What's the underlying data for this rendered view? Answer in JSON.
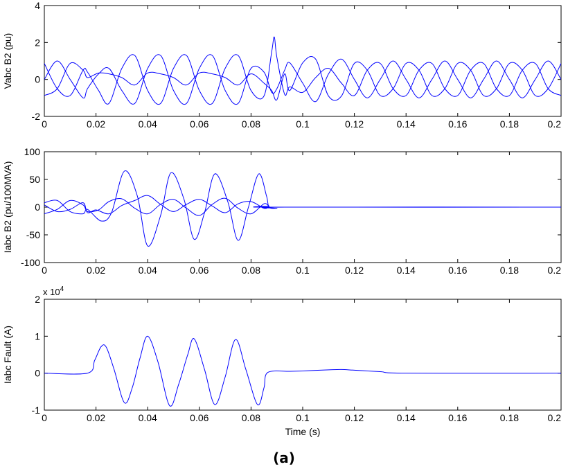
{
  "figure_label": "(a)",
  "chart_data": [
    {
      "type": "line",
      "ylabel": "Vabc B2 (pu)",
      "xlabel": "",
      "xlim": [
        0,
        0.2
      ],
      "ylim": [
        -2,
        4
      ],
      "xticks": [
        0,
        0.02,
        0.04,
        0.06,
        0.08,
        0.1,
        0.12,
        0.14,
        0.16,
        0.18,
        0.2
      ],
      "xtick_labels": [
        "0",
        "0.02",
        "0.04",
        "0.06",
        "0.08",
        "0.1",
        "0.12",
        "0.14",
        "0.16",
        "0.18",
        "0.2"
      ],
      "yticks": [
        -2,
        0,
        2,
        4
      ],
      "ytick_labels": [
        "-2",
        "0",
        "2",
        "4"
      ],
      "line_color": "#0000ff",
      "series": [
        {
          "phase_deg": 0,
          "points": [
            [
              0,
              0.0
            ],
            [
              0.005,
              1.0
            ],
            [
              0.01,
              0.0
            ],
            [
              0.015,
              -1.0
            ],
            [
              0.0167,
              -0.5
            ],
            [
              0.021,
              0.3
            ],
            [
              0.025,
              0.6
            ],
            [
              0.03,
              -0.6
            ],
            [
              0.035,
              -1.3
            ],
            [
              0.04,
              0.6
            ],
            [
              0.045,
              1.3
            ],
            [
              0.05,
              -0.6
            ],
            [
              0.055,
              -1.3
            ],
            [
              0.06,
              0.6
            ],
            [
              0.065,
              1.3
            ],
            [
              0.07,
              -0.6
            ],
            [
              0.075,
              -1.3
            ],
            [
              0.08,
              0.6
            ],
            [
              0.085,
              0.4
            ],
            [
              0.088,
              -0.7
            ],
            [
              0.09,
              -0.5
            ],
            [
              0.093,
              0.5
            ],
            [
              0.095,
              0.9
            ],
            [
              0.1,
              -0.2
            ],
            [
              0.105,
              -1.2
            ],
            [
              0.11,
              0.3
            ],
            [
              0.115,
              1.1
            ],
            [
              0.12,
              0.0
            ],
            [
              0.125,
              -1.0
            ],
            [
              0.13,
              0.0
            ],
            [
              0.135,
              1.0
            ],
            [
              0.14,
              0.0
            ],
            [
              0.145,
              -1.0
            ],
            [
              0.15,
              0.0
            ],
            [
              0.155,
              1.0
            ],
            [
              0.16,
              0.0
            ],
            [
              0.165,
              -1.0
            ],
            [
              0.17,
              0.0
            ],
            [
              0.175,
              1.0
            ],
            [
              0.18,
              0.0
            ],
            [
              0.185,
              -1.0
            ],
            [
              0.19,
              0.0
            ],
            [
              0.195,
              1.0
            ],
            [
              0.2,
              0.0
            ]
          ]
        },
        {
          "phase_deg": -120,
          "points": [
            [
              0,
              -0.87
            ],
            [
              0.005,
              -0.5
            ],
            [
              0.01,
              0.87
            ],
            [
              0.015,
              0.5
            ],
            [
              0.0167,
              0.1
            ],
            [
              0.021,
              0.35
            ],
            [
              0.025,
              0.3
            ],
            [
              0.03,
              0.1
            ],
            [
              0.035,
              -0.3
            ],
            [
              0.04,
              0.35
            ],
            [
              0.045,
              0.3
            ],
            [
              0.05,
              0.1
            ],
            [
              0.055,
              -0.3
            ],
            [
              0.06,
              0.35
            ],
            [
              0.065,
              0.3
            ],
            [
              0.07,
              0.1
            ],
            [
              0.075,
              -0.3
            ],
            [
              0.08,
              0.3
            ],
            [
              0.085,
              -0.2
            ],
            [
              0.088,
              -0.6
            ],
            [
              0.09,
              -1.1
            ],
            [
              0.093,
              0.3
            ],
            [
              0.095,
              -0.6
            ],
            [
              0.1,
              0.9
            ],
            [
              0.105,
              1.1
            ],
            [
              0.11,
              -0.9
            ],
            [
              0.115,
              -0.9
            ],
            [
              0.12,
              0.87
            ],
            [
              0.125,
              0.5
            ],
            [
              0.13,
              -0.87
            ],
            [
              0.135,
              -0.5
            ],
            [
              0.14,
              0.87
            ],
            [
              0.145,
              0.5
            ],
            [
              0.15,
              -0.87
            ],
            [
              0.155,
              -0.5
            ],
            [
              0.16,
              0.87
            ],
            [
              0.165,
              0.5
            ],
            [
              0.17,
              -0.87
            ],
            [
              0.175,
              -0.5
            ],
            [
              0.18,
              0.87
            ],
            [
              0.185,
              0.5
            ],
            [
              0.19,
              -0.87
            ],
            [
              0.195,
              -0.5
            ],
            [
              0.2,
              0.87
            ]
          ]
        },
        {
          "phase_deg": 120,
          "points": [
            [
              0,
              0.87
            ],
            [
              0.005,
              -0.5
            ],
            [
              0.01,
              -0.87
            ],
            [
              0.015,
              0.5
            ],
            [
              0.0167,
              0.4
            ],
            [
              0.021,
              -0.6
            ],
            [
              0.025,
              -1.3
            ],
            [
              0.03,
              0.6
            ],
            [
              0.035,
              1.3
            ],
            [
              0.04,
              -0.6
            ],
            [
              0.045,
              -1.3
            ],
            [
              0.05,
              0.6
            ],
            [
              0.055,
              1.3
            ],
            [
              0.06,
              -0.6
            ],
            [
              0.065,
              -1.3
            ],
            [
              0.07,
              0.6
            ],
            [
              0.075,
              1.3
            ],
            [
              0.08,
              -0.6
            ],
            [
              0.085,
              -0.9
            ],
            [
              0.088,
              1.5
            ],
            [
              0.089,
              2.3
            ],
            [
              0.09,
              1.2
            ],
            [
              0.093,
              -0.8
            ],
            [
              0.095,
              -0.4
            ],
            [
              0.1,
              -0.7
            ],
            [
              0.105,
              0.1
            ],
            [
              0.11,
              0.6
            ],
            [
              0.115,
              -0.2
            ],
            [
              0.12,
              -0.87
            ],
            [
              0.125,
              0.5
            ],
            [
              0.13,
              0.87
            ],
            [
              0.135,
              -0.5
            ],
            [
              0.14,
              -0.87
            ],
            [
              0.145,
              0.5
            ],
            [
              0.15,
              0.87
            ],
            [
              0.155,
              -0.5
            ],
            [
              0.16,
              -0.87
            ],
            [
              0.165,
              0.5
            ],
            [
              0.17,
              0.87
            ],
            [
              0.175,
              -0.5
            ],
            [
              0.18,
              -0.87
            ],
            [
              0.185,
              0.5
            ],
            [
              0.19,
              0.87
            ],
            [
              0.195,
              -0.5
            ],
            [
              0.2,
              -0.87
            ]
          ]
        }
      ]
    },
    {
      "type": "line",
      "ylabel": "Iabc B2 (pu/100MVA)",
      "xlabel": "",
      "xlim": [
        0,
        0.2
      ],
      "ylim": [
        -100,
        100
      ],
      "xticks": [
        0,
        0.02,
        0.04,
        0.06,
        0.08,
        0.1,
        0.12,
        0.14,
        0.16,
        0.18,
        0.2
      ],
      "xtick_labels": [
        "0",
        "0.02",
        "0.04",
        "0.06",
        "0.08",
        "0.1",
        "0.12",
        "0.14",
        "0.16",
        "0.18",
        "0.2"
      ],
      "yticks": [
        -100,
        -50,
        0,
        50,
        100
      ],
      "ytick_labels": [
        "-100",
        "-50",
        "0",
        "50",
        "100"
      ],
      "line_color": "#0000ff",
      "series": [
        {
          "points": [
            [
              0,
              8
            ],
            [
              0.005,
              12
            ],
            [
              0.01,
              -8
            ],
            [
              0.015,
              -12
            ],
            [
              0.0167,
              -4
            ],
            [
              0.022,
              -25
            ],
            [
              0.026,
              -10
            ],
            [
              0.031,
              65
            ],
            [
              0.036,
              20
            ],
            [
              0.04,
              -70
            ],
            [
              0.045,
              -15
            ],
            [
              0.049,
              62
            ],
            [
              0.054,
              15
            ],
            [
              0.058,
              -58
            ],
            [
              0.062,
              -10
            ],
            [
              0.066,
              60
            ],
            [
              0.071,
              10
            ],
            [
              0.075,
              -60
            ],
            [
              0.079,
              0
            ],
            [
              0.083,
              60
            ],
            [
              0.086,
              20
            ],
            [
              0.087,
              0
            ],
            [
              0.09,
              -2
            ],
            [
              0.093,
              0
            ],
            [
              0.2,
              0
            ]
          ]
        },
        {
          "points": [
            [
              0,
              -12
            ],
            [
              0.005,
              -4
            ],
            [
              0.01,
              12
            ],
            [
              0.015,
              4
            ],
            [
              0.0167,
              -8
            ],
            [
              0.021,
              -5
            ],
            [
              0.025,
              10
            ],
            [
              0.03,
              15
            ],
            [
              0.035,
              -2
            ],
            [
              0.04,
              -12
            ],
            [
              0.045,
              5
            ],
            [
              0.05,
              14
            ],
            [
              0.055,
              -2
            ],
            [
              0.06,
              -15
            ],
            [
              0.065,
              5
            ],
            [
              0.07,
              16
            ],
            [
              0.075,
              -2
            ],
            [
              0.08,
              -12
            ],
            [
              0.085,
              6
            ],
            [
              0.087,
              2
            ],
            [
              0.09,
              0
            ],
            [
              0.2,
              0
            ]
          ]
        },
        {
          "points": [
            [
              0,
              4
            ],
            [
              0.005,
              -8
            ],
            [
              0.01,
              -4
            ],
            [
              0.015,
              8
            ],
            [
              0.0167,
              -10
            ],
            [
              0.02,
              -5
            ],
            [
              0.025,
              -12
            ],
            [
              0.03,
              3
            ],
            [
              0.035,
              12
            ],
            [
              0.04,
              21
            ],
            [
              0.045,
              5
            ],
            [
              0.05,
              -8
            ],
            [
              0.055,
              5
            ],
            [
              0.06,
              14
            ],
            [
              0.065,
              2
            ],
            [
              0.07,
              -10
            ],
            [
              0.075,
              6
            ],
            [
              0.08,
              10
            ],
            [
              0.085,
              -2
            ],
            [
              0.087,
              0
            ],
            [
              0.09,
              0
            ],
            [
              0.2,
              0
            ]
          ]
        }
      ]
    },
    {
      "type": "line",
      "ylabel": "Iabc Fault (A)",
      "xlabel": "Time (s)",
      "y_exponent_label": "x 10",
      "y_exponent_power": "4",
      "xlim": [
        0,
        0.2
      ],
      "ylim": [
        -1,
        2
      ],
      "xticks": [
        0,
        0.02,
        0.04,
        0.06,
        0.08,
        0.1,
        0.12,
        0.14,
        0.16,
        0.18,
        0.2
      ],
      "xtick_labels": [
        "0",
        "0.02",
        "0.04",
        "0.06",
        "0.08",
        "0.1",
        "0.12",
        "0.14",
        "0.16",
        "0.18",
        "0.2"
      ],
      "yticks": [
        -1,
        0,
        1,
        2
      ],
      "ytick_labels": [
        "-1",
        "0",
        "1",
        "2"
      ],
      "line_color": "#0000ff",
      "series": [
        {
          "points": [
            [
              0,
              0
            ],
            [
              0.0167,
              0
            ],
            [
              0.0195,
              0.35
            ],
            [
              0.022,
              0.72
            ],
            [
              0.024,
              0.7
            ],
            [
              0.027,
              0.1
            ],
            [
              0.031,
              -0.8
            ],
            [
              0.034,
              -0.4
            ],
            [
              0.037,
              0.4
            ],
            [
              0.04,
              1.0
            ],
            [
              0.044,
              0.3
            ],
            [
              0.0485,
              -0.88
            ],
            [
              0.052,
              -0.3
            ],
            [
              0.0555,
              0.5
            ],
            [
              0.058,
              0.93
            ],
            [
              0.062,
              0.1
            ],
            [
              0.066,
              -0.85
            ],
            [
              0.07,
              -0.1
            ],
            [
              0.074,
              0.91
            ],
            [
              0.078,
              0.1
            ],
            [
              0.0825,
              -0.85
            ],
            [
              0.085,
              -0.4
            ],
            [
              0.0865,
              0.02
            ],
            [
              0.095,
              0.05
            ],
            [
              0.1,
              0.06
            ],
            [
              0.11,
              0.09
            ],
            [
              0.115,
              0.1
            ],
            [
              0.12,
              0.08
            ],
            [
              0.13,
              0.04
            ],
            [
              0.14,
              0.0
            ],
            [
              0.2,
              0.0
            ]
          ]
        }
      ]
    }
  ]
}
